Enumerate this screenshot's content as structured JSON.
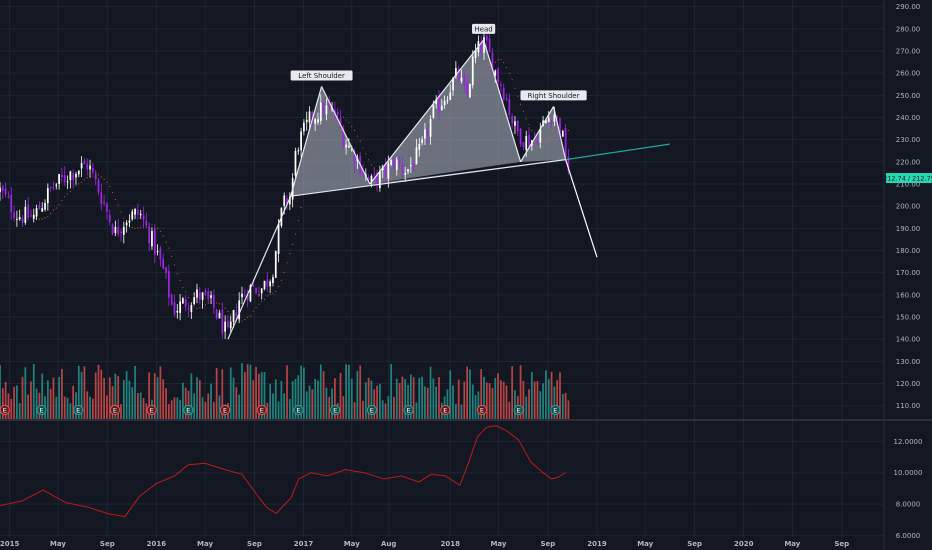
{
  "chart_data": [
    {
      "type": "candlestick",
      "title": "",
      "price_axis": {
        "range": [
          104,
          293
        ],
        "ticks": [
          290,
          280,
          270,
          260,
          250,
          240,
          230,
          220,
          210,
          200,
          190,
          180,
          170,
          160,
          150,
          140,
          130,
          120,
          110
        ],
        "tick_labels": [
          "290.00",
          "280.00",
          "270.00",
          "260.00",
          "250.00",
          "240.00",
          "230.00",
          "220.00",
          "210.00",
          "200.00",
          "190.00",
          "180.00",
          "170.00",
          "160.00",
          "150.00",
          "140.00",
          "130.00",
          "120.00",
          "110.00"
        ],
        "current_price_label": "212.74 / 212.75",
        "current_price": 212.7,
        "current_price_color": "#26d7b0"
      },
      "time_axis": {
        "range": [
          "2014-12-08",
          "2020-12-15"
        ],
        "ticks": [
          "2015-01-01",
          "2015-05-01",
          "2015-09-01",
          "2016-01-01",
          "2016-05-01",
          "2016-09-01",
          "2017-01-01",
          "2017-05-01",
          "2017-08-01",
          "2018-01-01",
          "2018-05-01",
          "2018-09-01",
          "2019-01-01",
          "2019-05-01",
          "2019-09-01",
          "2020-01-01",
          "2020-05-01",
          "2020-09-01"
        ],
        "tick_labels": [
          "2015",
          "May",
          "Sep",
          "2016",
          "May",
          "Sep",
          "2017",
          "May",
          "Aug",
          "2018",
          "May",
          "Sep",
          "2019",
          "May",
          "Sep",
          "2020",
          "May",
          "Sep"
        ]
      },
      "price_path": [
        [
          "2014-12-08",
          207
        ],
        [
          "2015-01-20",
          196
        ],
        [
          "2015-03-01",
          195
        ],
        [
          "2015-04-15",
          208
        ],
        [
          "2015-06-01",
          215
        ],
        [
          "2015-07-15",
          219
        ],
        [
          "2015-08-20",
          203
        ],
        [
          "2015-09-20",
          188
        ],
        [
          "2015-10-20",
          195
        ],
        [
          "2015-11-20",
          197
        ],
        [
          "2015-12-20",
          185
        ],
        [
          "2016-01-20",
          170
        ],
        [
          "2016-02-11",
          153
        ],
        [
          "2016-03-15",
          157
        ],
        [
          "2016-04-15",
          160
        ],
        [
          "2016-05-20",
          155
        ],
        [
          "2016-06-27",
          141
        ],
        [
          "2016-07-25",
          158
        ],
        [
          "2016-08-20",
          163
        ],
        [
          "2016-09-20",
          163
        ],
        [
          "2016-10-15",
          170
        ],
        [
          "2016-11-10",
          200
        ],
        [
          "2016-11-30",
          205
        ],
        [
          "2016-12-15",
          227
        ],
        [
          "2017-01-20",
          240
        ],
        [
          "2017-02-20",
          244
        ],
        [
          "2017-03-20",
          242
        ],
        [
          "2017-04-10",
          231
        ],
        [
          "2017-05-15",
          221
        ],
        [
          "2017-06-15",
          210
        ],
        [
          "2017-07-15",
          214
        ],
        [
          "2017-08-15",
          220
        ],
        [
          "2017-09-15",
          216
        ],
        [
          "2017-10-20",
          225
        ],
        [
          "2017-11-20",
          242
        ],
        [
          "2017-12-20",
          250
        ],
        [
          "2018-01-20",
          260
        ],
        [
          "2018-02-10",
          248
        ],
        [
          "2018-03-01",
          268
        ],
        [
          "2018-03-28",
          274
        ],
        [
          "2018-04-20",
          262
        ],
        [
          "2018-05-15",
          252
        ],
        [
          "2018-06-10",
          235
        ],
        [
          "2018-07-05",
          230
        ],
        [
          "2018-07-30",
          230
        ],
        [
          "2018-08-25",
          238
        ],
        [
          "2018-09-15",
          243
        ],
        [
          "2018-10-05",
          233
        ],
        [
          "2018-10-18",
          221
        ],
        [
          "2018-10-25",
          213
        ]
      ],
      "pattern": {
        "left_shoulder": {
          "label": "Left Shoulder",
          "points": [
            [
              "2016-11-30",
              204.5
            ],
            [
              "2017-02-15",
              254
            ],
            [
              "2017-06-15",
              210
            ]
          ]
        },
        "head": {
          "label": "Head",
          "points": [
            [
              "2017-06-15",
              210
            ],
            [
              "2018-03-25",
              275
            ],
            [
              "2018-06-25",
              220
            ]
          ]
        },
        "right_shoulder": {
          "label": "Right Shoulder",
          "points": [
            [
              "2018-06-25",
              220
            ],
            [
              "2018-09-15",
              245
            ],
            [
              "2018-10-15",
              221
            ]
          ]
        },
        "neckline": [
          [
            "2016-11-30",
            204.5
          ],
          [
            "2018-10-15",
            221
          ]
        ],
        "neckline_extension": [
          [
            "2018-10-15",
            221
          ],
          [
            "2019-07-01",
            228
          ]
        ],
        "breakdown_projection": [
          [
            "2018-10-15",
            221
          ],
          [
            "2019-01-01",
            177
          ]
        ],
        "rally_line": [
          [
            "2016-06-27",
            140
          ],
          [
            "2016-11-30",
            204.5
          ]
        ]
      },
      "volume": {
        "up_color": "#26a69a",
        "down_color": "#ef5350"
      },
      "earnings_marker": "E",
      "colors": {
        "candle_up": "#ffffff",
        "candle_down": "#9b27e0",
        "pattern_fill": "#b2bcc8",
        "neckline_extension": "#26a69a",
        "projection": "#ffffff",
        "moving_average": "#ef5350"
      }
    },
    {
      "type": "line",
      "title": "",
      "y_axis": {
        "range": [
          5.9,
          13.3
        ],
        "ticks": [
          12,
          10,
          8,
          6
        ],
        "tick_labels": [
          "12.0000",
          "10.0000",
          "8.0000",
          "6.0000"
        ]
      },
      "series": [
        {
          "color": "#b71c1c",
          "points": [
            [
              "2014-12-08",
              7.9
            ],
            [
              "2015-02-01",
              8.2
            ],
            [
              "2015-03-25",
              8.9
            ],
            [
              "2015-05-20",
              8.1
            ],
            [
              "2015-07-15",
              7.8
            ],
            [
              "2015-09-01",
              7.4
            ],
            [
              "2015-10-15",
              7.2
            ],
            [
              "2015-11-20",
              8.5
            ],
            [
              "2015-12-31",
              9.3
            ],
            [
              "2016-02-15",
              9.8
            ],
            [
              "2016-03-20",
              10.5
            ],
            [
              "2016-05-01",
              10.6
            ],
            [
              "2016-06-20",
              10.2
            ],
            [
              "2016-08-01",
              9.9
            ],
            [
              "2016-09-01",
              8.8
            ],
            [
              "2016-10-01",
              7.8
            ],
            [
              "2016-10-25",
              7.4
            ],
            [
              "2016-12-01",
              8.4
            ],
            [
              "2016-12-20",
              9.6
            ],
            [
              "2017-01-20",
              10.0
            ],
            [
              "2017-03-01",
              9.8
            ],
            [
              "2017-04-15",
              10.2
            ],
            [
              "2017-06-01",
              10.0
            ],
            [
              "2017-07-20",
              9.6
            ],
            [
              "2017-09-01",
              9.8
            ],
            [
              "2017-10-15",
              9.4
            ],
            [
              "2017-11-15",
              9.9
            ],
            [
              "2017-12-20",
              9.8
            ],
            [
              "2018-01-25",
              9.2
            ],
            [
              "2018-02-15",
              10.6
            ],
            [
              "2018-03-10",
              12.3
            ],
            [
              "2018-04-01",
              12.9
            ],
            [
              "2018-04-25",
              13.0
            ],
            [
              "2018-05-20",
              12.7
            ],
            [
              "2018-06-20",
              12.1
            ],
            [
              "2018-07-20",
              10.7
            ],
            [
              "2018-08-20",
              10.0
            ],
            [
              "2018-09-10",
              9.6
            ],
            [
              "2018-09-25",
              9.7
            ],
            [
              "2018-10-15",
              10.0
            ]
          ]
        }
      ]
    }
  ]
}
